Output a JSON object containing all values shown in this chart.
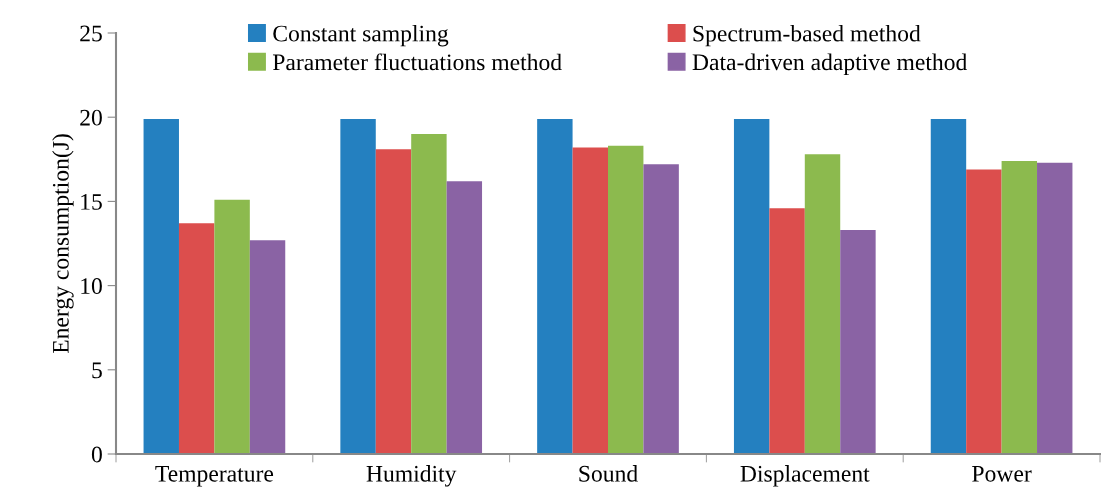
{
  "chart_data": {
    "type": "bar",
    "ylabel": "Energy consumption(J)",
    "categories": [
      "Temperature",
      "Humidity",
      "Sound",
      "Displacement",
      "Power"
    ],
    "series": [
      {
        "name": "Constant sampling",
        "color": "#2480c0",
        "values": [
          19.9,
          19.9,
          19.9,
          19.9,
          19.9
        ]
      },
      {
        "name": "Spectrum-based method",
        "color": "#dc4e4d",
        "values": [
          13.7,
          18.1,
          18.2,
          14.6,
          16.9
        ]
      },
      {
        "name": "Parameter fluctuations method",
        "color": "#8cba4e",
        "values": [
          15.1,
          19.0,
          18.3,
          17.8,
          17.4
        ]
      },
      {
        "name": "Data-driven adaptive method",
        "color": "#8a63a4",
        "values": [
          12.7,
          16.2,
          17.2,
          13.3,
          17.3
        ]
      }
    ],
    "ylim": [
      0,
      25
    ],
    "yticks": [
      0,
      5,
      10,
      15,
      20,
      25
    ],
    "grid": false,
    "legend": "top"
  }
}
